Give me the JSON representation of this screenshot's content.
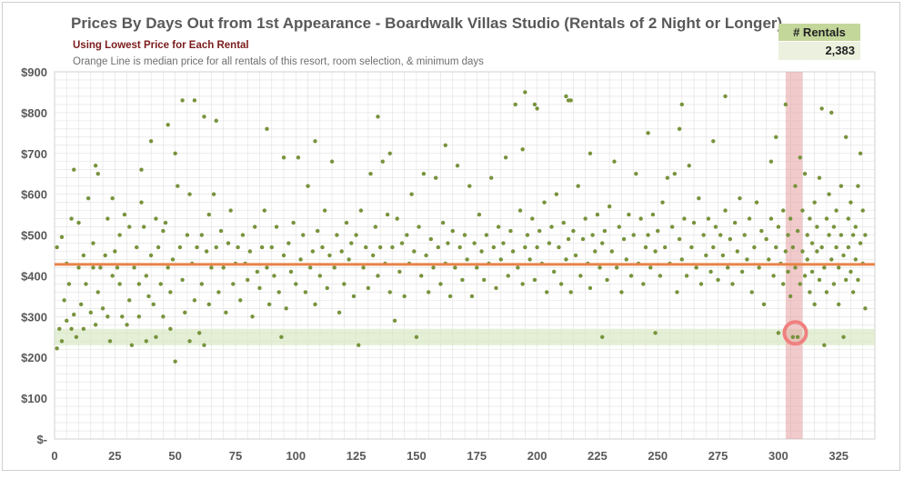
{
  "chart_data": {
    "type": "scatter",
    "title": "Prices By Days Out from 1st Appearance - Boardwalk Villas Studio (Rentals of 2 Night or Longer)",
    "subtitle": "Using Lowest Price for Each Rental",
    "note": "Orange Line is median price for all rentals of this resort, room selection, & minimum days",
    "summary_box": {
      "header": "# Rentals",
      "value": "2,383"
    },
    "xlim": [
      0,
      340
    ],
    "ylim": [
      0,
      900
    ],
    "x_ticks": [
      0,
      25,
      50,
      75,
      100,
      125,
      150,
      175,
      200,
      225,
      250,
      275,
      300,
      325
    ],
    "x_tick_labels": [
      "0",
      "25",
      "50",
      "75",
      "100",
      "125",
      "150",
      "175",
      "200",
      "225",
      "250",
      "275",
      "300",
      "325"
    ],
    "y_ticks": [
      0,
      100,
      200,
      300,
      400,
      500,
      600,
      700,
      800,
      900
    ],
    "y_tick_labels": [
      "$-",
      "$100",
      "$200",
      "$300",
      "$400",
      "$500",
      "$600",
      "$700",
      "$800",
      "$900"
    ],
    "grid": true,
    "median_price": 428,
    "low_price_band": [
      230,
      270
    ],
    "highlight_x_range": [
      303,
      310
    ],
    "highlight_circle": {
      "x": 307,
      "y": 260
    },
    "colors": {
      "points": "#77933c",
      "median_line": "#f4a460",
      "median_line_stroke": "#e8834a",
      "band": "#d8e8c4",
      "highlight": "#e6a1a1",
      "circle": "#f08080",
      "grid": "#e0e0e0"
    },
    "points": [
      [
        1,
        222
      ],
      [
        1,
        470
      ],
      [
        2,
        270
      ],
      [
        3,
        240
      ],
      [
        3,
        495
      ],
      [
        4,
        340
      ],
      [
        5,
        290
      ],
      [
        5,
        430
      ],
      [
        6,
        380
      ],
      [
        7,
        270
      ],
      [
        7,
        540
      ],
      [
        8,
        660
      ],
      [
        8,
        305
      ],
      [
        9,
        250
      ],
      [
        10,
        420
      ],
      [
        10,
        530
      ],
      [
        11,
        330
      ],
      [
        12,
        450
      ],
      [
        12,
        270
      ],
      [
        13,
        380
      ],
      [
        14,
        590
      ],
      [
        15,
        310
      ],
      [
        16,
        420
      ],
      [
        16,
        480
      ],
      [
        17,
        670
      ],
      [
        17,
        280
      ],
      [
        18,
        650
      ],
      [
        18,
        360
      ],
      [
        19,
        420
      ],
      [
        20,
        320
      ],
      [
        21,
        450
      ],
      [
        22,
        300
      ],
      [
        22,
        540
      ],
      [
        23,
        240
      ],
      [
        24,
        400
      ],
      [
        24,
        590
      ],
      [
        25,
        460
      ],
      [
        26,
        420
      ],
      [
        27,
        380
      ],
      [
        27,
        500
      ],
      [
        28,
        300
      ],
      [
        29,
        550
      ],
      [
        30,
        280
      ],
      [
        31,
        340
      ],
      [
        31,
        520
      ],
      [
        32,
        230
      ],
      [
        33,
        420
      ],
      [
        34,
        470
      ],
      [
        35,
        380
      ],
      [
        35,
        300
      ],
      [
        36,
        660
      ],
      [
        36,
        580
      ],
      [
        37,
        520
      ],
      [
        38,
        400
      ],
      [
        38,
        240
      ],
      [
        39,
        350
      ],
      [
        40,
        450
      ],
      [
        40,
        730
      ],
      [
        41,
        330
      ],
      [
        42,
        250
      ],
      [
        42,
        540
      ],
      [
        43,
        470
      ],
      [
        44,
        380
      ],
      [
        45,
        300
      ],
      [
        45,
        510
      ],
      [
        46,
        530
      ],
      [
        47,
        770
      ],
      [
        47,
        420
      ],
      [
        48,
        360
      ],
      [
        48,
        270
      ],
      [
        49,
        440
      ],
      [
        50,
        190
      ],
      [
        50,
        700
      ],
      [
        51,
        620
      ],
      [
        52,
        470
      ],
      [
        53,
        830
      ],
      [
        53,
        390
      ],
      [
        54,
        310
      ],
      [
        55,
        500
      ],
      [
        56,
        240
      ],
      [
        56,
        600
      ],
      [
        57,
        430
      ],
      [
        58,
        830
      ],
      [
        58,
        340
      ],
      [
        59,
        470
      ],
      [
        60,
        260
      ],
      [
        61,
        500
      ],
      [
        61,
        380
      ],
      [
        62,
        790
      ],
      [
        62,
        230
      ],
      [
        63,
        460
      ],
      [
        64,
        550
      ],
      [
        64,
        330
      ],
      [
        65,
        420
      ],
      [
        66,
        600
      ],
      [
        67,
        780
      ],
      [
        67,
        470
      ],
      [
        68,
        360
      ],
      [
        69,
        510
      ],
      [
        70,
        420
      ],
      [
        71,
        310
      ],
      [
        72,
        480
      ],
      [
        73,
        560
      ],
      [
        74,
        380
      ],
      [
        75,
        430
      ],
      [
        76,
        470
      ],
      [
        77,
        340
      ],
      [
        78,
        500
      ],
      [
        79,
        430
      ],
      [
        80,
        390
      ],
      [
        81,
        460
      ],
      [
        82,
        300
      ],
      [
        83,
        520
      ],
      [
        84,
        410
      ],
      [
        85,
        370
      ],
      [
        86,
        470
      ],
      [
        87,
        560
      ],
      [
        88,
        760
      ],
      [
        88,
        420
      ],
      [
        89,
        330
      ],
      [
        90,
        470
      ],
      [
        91,
        400
      ],
      [
        92,
        520
      ],
      [
        93,
        360
      ],
      [
        94,
        250
      ],
      [
        95,
        690
      ],
      [
        95,
        450
      ],
      [
        96,
        320
      ],
      [
        97,
        480
      ],
      [
        98,
        410
      ],
      [
        99,
        530
      ],
      [
        100,
        380
      ],
      [
        101,
        690
      ],
      [
        102,
        440
      ],
      [
        103,
        500
      ],
      [
        104,
        360
      ],
      [
        105,
        620
      ],
      [
        106,
        420
      ],
      [
        107,
        460
      ],
      [
        108,
        730
      ],
      [
        108,
        330
      ],
      [
        109,
        510
      ],
      [
        110,
        400
      ],
      [
        111,
        470
      ],
      [
        112,
        560
      ],
      [
        113,
        370
      ],
      [
        114,
        450
      ],
      [
        115,
        680
      ],
      [
        116,
        420
      ],
      [
        117,
        500
      ],
      [
        118,
        310
      ],
      [
        119,
        460
      ],
      [
        120,
        380
      ],
      [
        121,
        530
      ],
      [
        122,
        440
      ],
      [
        123,
        480
      ],
      [
        124,
        350
      ],
      [
        125,
        500
      ],
      [
        126,
        230
      ],
      [
        127,
        560
      ],
      [
        128,
        420
      ],
      [
        129,
        470
      ],
      [
        130,
        370
      ],
      [
        131,
        650
      ],
      [
        132,
        450
      ],
      [
        133,
        520
      ],
      [
        134,
        790
      ],
      [
        134,
        400
      ],
      [
        135,
        470
      ],
      [
        136,
        680
      ],
      [
        137,
        430
      ],
      [
        138,
        550
      ],
      [
        139,
        700
      ],
      [
        139,
        360
      ],
      [
        140,
        470
      ],
      [
        141,
        290
      ],
      [
        142,
        540
      ],
      [
        143,
        410
      ],
      [
        144,
        480
      ],
      [
        145,
        350
      ],
      [
        146,
        500
      ],
      [
        147,
        430
      ],
      [
        148,
        600
      ],
      [
        149,
        460
      ],
      [
        150,
        250
      ],
      [
        151,
        520
      ],
      [
        152,
        400
      ],
      [
        153,
        650
      ],
      [
        154,
        450
      ],
      [
        155,
        360
      ],
      [
        156,
        490
      ],
      [
        157,
        420
      ],
      [
        158,
        640
      ],
      [
        159,
        470
      ],
      [
        160,
        380
      ],
      [
        161,
        530
      ],
      [
        162,
        720
      ],
      [
        162,
        430
      ],
      [
        163,
        480
      ],
      [
        164,
        350
      ],
      [
        165,
        510
      ],
      [
        166,
        420
      ],
      [
        167,
        670
      ],
      [
        168,
        470
      ],
      [
        169,
        390
      ],
      [
        170,
        500
      ],
      [
        171,
        440
      ],
      [
        172,
        620
      ],
      [
        173,
        350
      ],
      [
        174,
        480
      ],
      [
        175,
        420
      ],
      [
        176,
        550
      ],
      [
        177,
        460
      ],
      [
        178,
        390
      ],
      [
        179,
        500
      ],
      [
        180,
        430
      ],
      [
        181,
        640
      ],
      [
        182,
        470
      ],
      [
        183,
        370
      ],
      [
        184,
        520
      ],
      [
        185,
        440
      ],
      [
        186,
        480
      ],
      [
        187,
        690
      ],
      [
        188,
        400
      ],
      [
        189,
        510
      ],
      [
        190,
        460
      ],
      [
        191,
        820
      ],
      [
        192,
        420
      ],
      [
        193,
        560
      ],
      [
        194,
        710
      ],
      [
        194,
        380
      ],
      [
        195,
        850
      ],
      [
        195,
        470
      ],
      [
        196,
        500
      ],
      [
        197,
        440
      ],
      [
        198,
        540
      ],
      [
        199,
        820
      ],
      [
        199,
        390
      ],
      [
        200,
        810
      ],
      [
        200,
        470
      ],
      [
        201,
        510
      ],
      [
        202,
        430
      ],
      [
        203,
        580
      ],
      [
        204,
        360
      ],
      [
        205,
        480
      ],
      [
        206,
        520
      ],
      [
        207,
        410
      ],
      [
        208,
        600
      ],
      [
        209,
        470
      ],
      [
        210,
        380
      ],
      [
        211,
        530
      ],
      [
        212,
        840
      ],
      [
        212,
        440
      ],
      [
        213,
        830
      ],
      [
        213,
        490
      ],
      [
        214,
        830
      ],
      [
        214,
        360
      ],
      [
        215,
        510
      ],
      [
        216,
        450
      ],
      [
        217,
        620
      ],
      [
        218,
        400
      ],
      [
        219,
        490
      ],
      [
        220,
        540
      ],
      [
        221,
        430
      ],
      [
        222,
        700
      ],
      [
        222,
        370
      ],
      [
        223,
        500
      ],
      [
        224,
        460
      ],
      [
        225,
        550
      ],
      [
        226,
        420
      ],
      [
        227,
        250
      ],
      [
        227,
        480
      ],
      [
        228,
        510
      ],
      [
        229,
        390
      ],
      [
        230,
        570
      ],
      [
        231,
        460
      ],
      [
        232,
        680
      ],
      [
        233,
        420
      ],
      [
        234,
        520
      ],
      [
        235,
        360
      ],
      [
        236,
        490
      ],
      [
        237,
        440
      ],
      [
        238,
        550
      ],
      [
        239,
        400
      ],
      [
        240,
        500
      ],
      [
        241,
        650
      ],
      [
        242,
        430
      ],
      [
        243,
        540
      ],
      [
        244,
        380
      ],
      [
        245,
        470
      ],
      [
        246,
        750
      ],
      [
        246,
        500
      ],
      [
        247,
        420
      ],
      [
        248,
        550
      ],
      [
        249,
        260
      ],
      [
        249,
        460
      ],
      [
        250,
        510
      ],
      [
        251,
        400
      ],
      [
        252,
        580
      ],
      [
        253,
        470
      ],
      [
        254,
        640
      ],
      [
        255,
        430
      ],
      [
        256,
        520
      ],
      [
        257,
        650
      ],
      [
        258,
        360
      ],
      [
        259,
        760
      ],
      [
        259,
        490
      ],
      [
        260,
        820
      ],
      [
        260,
        440
      ],
      [
        261,
        540
      ],
      [
        262,
        400
      ],
      [
        263,
        670
      ],
      [
        264,
        470
      ],
      [
        265,
        530
      ],
      [
        266,
        420
      ],
      [
        267,
        590
      ],
      [
        268,
        380
      ],
      [
        269,
        500
      ],
      [
        270,
        450
      ],
      [
        271,
        540
      ],
      [
        272,
        410
      ],
      [
        273,
        730
      ],
      [
        273,
        470
      ],
      [
        274,
        520
      ],
      [
        275,
        390
      ],
      [
        276,
        500
      ],
      [
        277,
        450
      ],
      [
        278,
        840
      ],
      [
        278,
        560
      ],
      [
        279,
        420
      ],
      [
        280,
        490
      ],
      [
        281,
        380
      ],
      [
        282,
        530
      ],
      [
        283,
        460
      ],
      [
        284,
        590
      ],
      [
        285,
        410
      ],
      [
        286,
        500
      ],
      [
        287,
        440
      ],
      [
        288,
        540
      ],
      [
        289,
        360
      ],
      [
        290,
        470
      ],
      [
        291,
        580
      ],
      [
        292,
        420
      ],
      [
        293,
        510
      ],
      [
        294,
        330
      ],
      [
        295,
        490
      ],
      [
        296,
        440
      ],
      [
        297,
        680
      ],
      [
        297,
        540
      ],
      [
        298,
        400
      ],
      [
        299,
        740
      ],
      [
        299,
        470
      ],
      [
        300,
        260
      ],
      [
        300,
        520
      ],
      [
        301,
        430
      ],
      [
        302,
        560
      ],
      [
        302,
        380
      ],
      [
        303,
        820
      ],
      [
        303,
        460
      ],
      [
        304,
        500
      ],
      [
        304,
        410
      ],
      [
        305,
        540
      ],
      [
        305,
        350
      ],
      [
        306,
        250
      ],
      [
        306,
        470
      ],
      [
        307,
        620
      ],
      [
        307,
        420
      ],
      [
        308,
        250
      ],
      [
        308,
        510
      ],
      [
        309,
        380
      ],
      [
        309,
        690
      ],
      [
        310,
        460
      ],
      [
        310,
        560
      ],
      [
        311,
        400
      ],
      [
        311,
        650
      ],
      [
        312,
        500
      ],
      [
        312,
        440
      ],
      [
        313,
        360
      ],
      [
        313,
        540
      ],
      [
        314,
        480
      ],
      [
        314,
        410
      ],
      [
        315,
        580
      ],
      [
        315,
        330
      ],
      [
        316,
        460
      ],
      [
        316,
        520
      ],
      [
        317,
        390
      ],
      [
        317,
        640
      ],
      [
        318,
        810
      ],
      [
        318,
        470
      ],
      [
        319,
        230
      ],
      [
        319,
        420
      ],
      [
        320,
        540
      ],
      [
        320,
        360
      ],
      [
        321,
        500
      ],
      [
        321,
        600
      ],
      [
        322,
        440
      ],
      [
        322,
        800
      ],
      [
        323,
        380
      ],
      [
        323,
        520
      ],
      [
        324,
        470
      ],
      [
        324,
        560
      ],
      [
        325,
        420
      ],
      [
        325,
        330
      ],
      [
        326,
        500
      ],
      [
        326,
        620
      ],
      [
        327,
        450
      ],
      [
        327,
        250
      ],
      [
        328,
        740
      ],
      [
        328,
        390
      ],
      [
        329,
        540
      ],
      [
        329,
        470
      ],
      [
        330,
        410
      ],
      [
        330,
        580
      ],
      [
        331,
        500
      ],
      [
        331,
        360
      ],
      [
        332,
        440
      ],
      [
        332,
        520
      ],
      [
        333,
        620
      ],
      [
        333,
        390
      ],
      [
        334,
        480
      ],
      [
        334,
        700
      ],
      [
        335,
        430
      ],
      [
        335,
        560
      ],
      [
        336,
        500
      ],
      [
        336,
        320
      ]
    ]
  }
}
